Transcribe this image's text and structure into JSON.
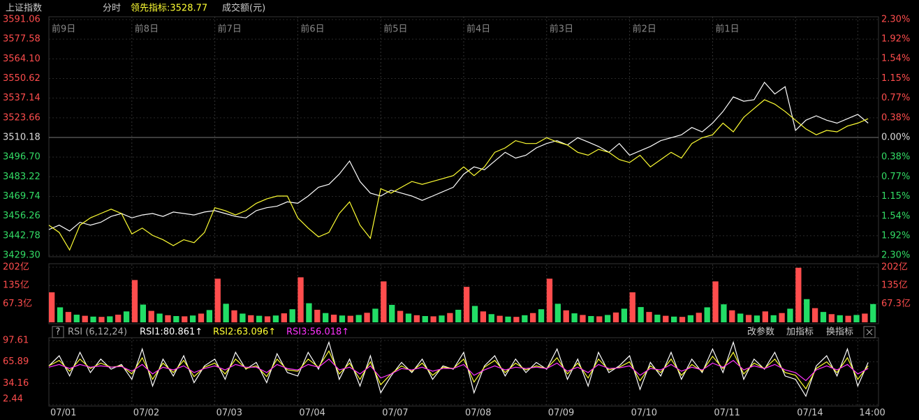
{
  "header": {
    "symbol": "上证指数",
    "mode": "分时",
    "lead": "领先指标:3528.77",
    "turnover": "成交额(元)"
  },
  "chart_data": [
    {
      "type": "line",
      "xlim": [
        0,
        10
      ],
      "day_labels": [
        {
          "value": 0,
          "label": "前9日"
        },
        {
          "value": 1,
          "label": "前8日"
        },
        {
          "value": 2,
          "label": "前7日"
        },
        {
          "value": 3,
          "label": "前6日"
        },
        {
          "value": 4,
          "label": "前5日"
        },
        {
          "value": 5,
          "label": "前4日"
        },
        {
          "value": 6,
          "label": "前3日"
        },
        {
          "value": 7,
          "label": "前2日"
        },
        {
          "value": 8,
          "label": "前1日"
        }
      ],
      "ylim": [
        3429.3,
        3591.06
      ],
      "yticks": [
        3591.06,
        3577.58,
        {
          "value": 3564.1,
          "label": "3564.10"
        },
        3550.62,
        3537.14,
        3523.66,
        3510.18,
        {
          "value": 3496.7,
          "label": "3496.70"
        },
        3483.22,
        3469.74,
        3456.26,
        3442.78,
        {
          "value": 3429.3,
          "label": "3429.30"
        }
      ],
      "y2lim": [
        -2.3,
        2.3
      ],
      "y2ticks": [
        {
          "value": 2.3,
          "label": "2.30%"
        },
        {
          "value": 1.92,
          "label": "1.92%"
        },
        {
          "value": 1.54,
          "label": "1.54%"
        },
        {
          "value": 1.15,
          "label": "1.15%"
        },
        {
          "value": 0.77,
          "label": "0.77%"
        },
        {
          "value": 0.38,
          "label": "0.38%"
        },
        {
          "value": 0,
          "label": "0.00%"
        },
        {
          "value": -0.38,
          "label": "0.38%"
        },
        {
          "value": -0.77,
          "label": "0.77%"
        },
        {
          "value": -1.15,
          "label": "1.15%"
        },
        {
          "value": -1.54,
          "label": "1.54%"
        },
        {
          "value": -1.92,
          "label": "1.92%"
        },
        {
          "value": -2.3,
          "label": "2.30%"
        }
      ],
      "grid": true,
      "x": [
        0,
        0.125,
        0.25,
        0.375,
        0.5,
        0.625,
        0.75,
        0.875,
        1,
        1.125,
        1.25,
        1.375,
        1.5,
        1.625,
        1.75,
        1.875,
        2,
        2.125,
        2.25,
        2.375,
        2.5,
        2.625,
        2.75,
        2.875,
        3,
        3.125,
        3.25,
        3.375,
        3.5,
        3.625,
        3.75,
        3.875,
        4,
        4.125,
        4.25,
        4.375,
        4.5,
        4.625,
        4.75,
        4.875,
        5,
        5.125,
        5.25,
        5.375,
        5.5,
        5.625,
        5.75,
        5.875,
        6,
        6.125,
        6.25,
        6.375,
        6.5,
        6.625,
        6.75,
        6.875,
        7,
        7.125,
        7.25,
        7.375,
        7.5,
        7.625,
        7.75,
        7.875,
        8,
        8.125,
        8.25,
        8.375,
        8.5,
        8.625,
        8.75,
        8.875,
        9,
        9.125,
        9.25,
        9.375,
        9.5,
        9.625,
        9.75,
        9.875
      ],
      "series": [
        {
          "color": "#ffffff",
          "values": [
            3447,
            3450,
            3446,
            3452,
            3450,
            3452,
            3456,
            3458,
            3455,
            3457,
            3458,
            3456,
            3459,
            3458,
            3457,
            3459,
            3460,
            3458,
            3456,
            3455,
            3460,
            3462,
            3463,
            3466,
            3465,
            3470,
            3476,
            3478,
            3485,
            3494,
            3480,
            3472,
            3470,
            3474,
            3472,
            3470,
            3467,
            3470,
            3473,
            3476,
            3485,
            3490,
            3488,
            3494,
            3500,
            3496,
            3498,
            3503,
            3506,
            3508,
            3505,
            3510,
            3507,
            3504,
            3500,
            3506,
            3498,
            3501,
            3504,
            3508,
            3510,
            3512,
            3517,
            3514,
            3520,
            3528,
            3538,
            3535,
            3536,
            3548,
            3540,
            3545,
            3515,
            3522,
            3525,
            3522,
            3520,
            3523,
            3526,
            3520
          ]
        },
        {
          "color": "#ffff33",
          "values": [
            3450,
            3445,
            3433,
            3450,
            3455,
            3458,
            3461,
            3458,
            3444,
            3448,
            3443,
            3440,
            3436,
            3440,
            3438,
            3445,
            3462,
            3460,
            3457,
            3460,
            3465,
            3468,
            3470,
            3470,
            3455,
            3448,
            3442,
            3445,
            3458,
            3466,
            3450,
            3441,
            3475,
            3472,
            3476,
            3480,
            3478,
            3480,
            3482,
            3484,
            3490,
            3484,
            3490,
            3500,
            3503,
            3508,
            3506,
            3506,
            3510,
            3507,
            3505,
            3500,
            3498,
            3502,
            3500,
            3495,
            3493,
            3498,
            3490,
            3495,
            3500,
            3496,
            3506,
            3510,
            3512,
            3520,
            3514,
            3524,
            3530,
            3536,
            3533,
            3528,
            3522,
            3516,
            3512,
            3515,
            3514,
            3518,
            3520,
            3523
          ]
        }
      ]
    },
    {
      "type": "bar",
      "xlim": [
        0,
        10
      ],
      "ylim": [
        0,
        202
      ],
      "yticks": [
        {
          "value": 202,
          "label": "202亿"
        },
        {
          "value": 135,
          "label": "135亿"
        },
        {
          "value": 67.3,
          "label": "67.3亿"
        }
      ],
      "colors": [
        "#ff4d4d",
        "#22dd66"
      ],
      "x": [
        0,
        0.1,
        0.2,
        0.3,
        0.4,
        0.5,
        0.6,
        0.7,
        0.8,
        0.9,
        1,
        1.1,
        1.2,
        1.3,
        1.4,
        1.5,
        1.6,
        1.7,
        1.8,
        1.9,
        2,
        2.1,
        2.2,
        2.3,
        2.4,
        2.5,
        2.6,
        2.7,
        2.8,
        2.9,
        3,
        3.1,
        3.2,
        3.3,
        3.4,
        3.5,
        3.6,
        3.7,
        3.8,
        3.9,
        4,
        4.1,
        4.2,
        4.3,
        4.4,
        4.5,
        4.6,
        4.7,
        4.8,
        4.9,
        5,
        5.1,
        5.2,
        5.3,
        5.4,
        5.5,
        5.6,
        5.7,
        5.8,
        5.9,
        6,
        6.1,
        6.2,
        6.3,
        6.4,
        6.5,
        6.6,
        6.7,
        6.8,
        6.9,
        7,
        7.1,
        7.2,
        7.3,
        7.4,
        7.5,
        7.6,
        7.7,
        7.8,
        7.9,
        8,
        8.1,
        8.2,
        8.3,
        8.4,
        8.5,
        8.6,
        8.7,
        8.8,
        8.9,
        9,
        9.1,
        9.2,
        9.3,
        9.4,
        9.5,
        9.6,
        9.7,
        9.8,
        9.9
      ],
      "values": [
        110,
        55,
        38,
        28,
        24,
        21,
        20,
        22,
        28,
        40,
        155,
        65,
        42,
        32,
        26,
        23,
        22,
        25,
        32,
        45,
        160,
        68,
        44,
        32,
        26,
        24,
        22,
        25,
        33,
        48,
        165,
        70,
        46,
        34,
        28,
        25,
        24,
        27,
        35,
        50,
        150,
        64,
        42,
        32,
        26,
        23,
        22,
        25,
        34,
        46,
        130,
        60,
        40,
        30,
        24,
        21,
        20,
        26,
        34,
        48,
        160,
        68,
        44,
        33,
        27,
        23,
        22,
        27,
        36,
        50,
        110,
        56,
        38,
        28,
        24,
        21,
        20,
        26,
        35,
        55,
        150,
        66,
        44,
        32,
        27,
        25,
        40,
        26,
        34,
        50,
        200,
        85,
        52,
        38,
        30,
        26,
        24,
        27,
        32,
        67
      ]
    },
    {
      "type": "line",
      "help": "?",
      "title": "RSI (6,12,24)",
      "buttons": [
        "改参数",
        "加指标",
        "换指标"
      ],
      "xlim": [
        0,
        10
      ],
      "x_labels": [
        {
          "value": 0,
          "label": "07/01"
        },
        {
          "value": 1,
          "label": "07/02"
        },
        {
          "value": 2,
          "label": "07/03"
        },
        {
          "value": 3,
          "label": "07/04"
        },
        {
          "value": 4,
          "label": "07/07"
        },
        {
          "value": 5,
          "label": "07/08"
        },
        {
          "value": 6,
          "label": "07/09"
        },
        {
          "value": 7,
          "label": "07/10"
        },
        {
          "value": 8,
          "label": "07/11"
        },
        {
          "value": 9,
          "label": "07/14"
        },
        {
          "value": 9.75,
          "label": "14:00"
        }
      ],
      "ylim": [
        2.44,
        97.61
      ],
      "yticks": [
        97.61,
        65.89,
        34.16,
        2.44
      ],
      "x": [
        0,
        0.125,
        0.25,
        0.375,
        0.5,
        0.625,
        0.75,
        0.875,
        1,
        1.125,
        1.25,
        1.375,
        1.5,
        1.625,
        1.75,
        1.875,
        2,
        2.125,
        2.25,
        2.375,
        2.5,
        2.625,
        2.75,
        2.875,
        3,
        3.125,
        3.25,
        3.375,
        3.5,
        3.625,
        3.75,
        3.875,
        4,
        4.125,
        4.25,
        4.375,
        4.5,
        4.625,
        4.75,
        4.875,
        5,
        5.125,
        5.25,
        5.375,
        5.5,
        5.625,
        5.75,
        5.875,
        6,
        6.125,
        6.25,
        6.375,
        6.5,
        6.625,
        6.75,
        6.875,
        7,
        7.125,
        7.25,
        7.375,
        7.5,
        7.625,
        7.75,
        7.875,
        8,
        8.125,
        8.25,
        8.375,
        8.5,
        8.625,
        8.75,
        8.875,
        9,
        9.125,
        9.25,
        9.375,
        9.5,
        9.625,
        9.75,
        9.875
      ],
      "series": [
        {
          "name": "RSI1:80.861↑",
          "color": "#ffffff",
          "values": [
            60,
            75,
            45,
            80,
            50,
            70,
            55,
            62,
            40,
            85,
            30,
            70,
            45,
            75,
            35,
            60,
            70,
            40,
            80,
            55,
            65,
            35,
            78,
            50,
            45,
            80,
            55,
            95,
            40,
            70,
            30,
            75,
            20,
            45,
            65,
            50,
            70,
            40,
            60,
            55,
            80,
            20,
            60,
            75,
            45,
            70,
            50,
            65,
            55,
            85,
            40,
            70,
            30,
            80,
            50,
            60,
            75,
            25,
            65,
            45,
            80,
            40,
            70,
            50,
            85,
            50,
            95,
            40,
            70,
            55,
            80,
            45,
            40,
            15,
            60,
            75,
            45,
            85,
            30,
            65
          ]
        },
        {
          "name": "RSI2:63.096↑",
          "color": "#ffff33",
          "values": [
            60,
            68,
            52,
            70,
            56,
            64,
            58,
            60,
            48,
            72,
            40,
            64,
            50,
            68,
            44,
            58,
            64,
            48,
            70,
            56,
            60,
            44,
            70,
            54,
            52,
            70,
            58,
            82,
            48,
            64,
            40,
            66,
            32,
            48,
            60,
            52,
            64,
            46,
            58,
            56,
            70,
            36,
            58,
            68,
            50,
            64,
            54,
            60,
            56,
            72,
            48,
            64,
            42,
            70,
            54,
            58,
            66,
            38,
            60,
            50,
            70,
            46,
            62,
            52,
            74,
            56,
            80,
            48,
            64,
            56,
            70,
            50,
            46,
            26,
            56,
            66,
            50,
            72,
            40,
            60
          ]
        },
        {
          "name": "RSI3:56.018↑",
          "color": "#ff33ff",
          "values": [
            58,
            62,
            56,
            62,
            58,
            60,
            58,
            59,
            52,
            62,
            48,
            58,
            54,
            60,
            50,
            56,
            60,
            54,
            62,
            58,
            58,
            50,
            62,
            56,
            54,
            62,
            58,
            70,
            54,
            58,
            48,
            60,
            42,
            48,
            56,
            54,
            58,
            52,
            56,
            56,
            62,
            46,
            54,
            60,
            54,
            58,
            56,
            58,
            56,
            64,
            52,
            58,
            50,
            62,
            56,
            57,
            60,
            46,
            56,
            54,
            62,
            52,
            58,
            54,
            64,
            58,
            68,
            54,
            60,
            56,
            62,
            54,
            50,
            38,
            54,
            60,
            54,
            62,
            48,
            56
          ]
        }
      ]
    }
  ]
}
